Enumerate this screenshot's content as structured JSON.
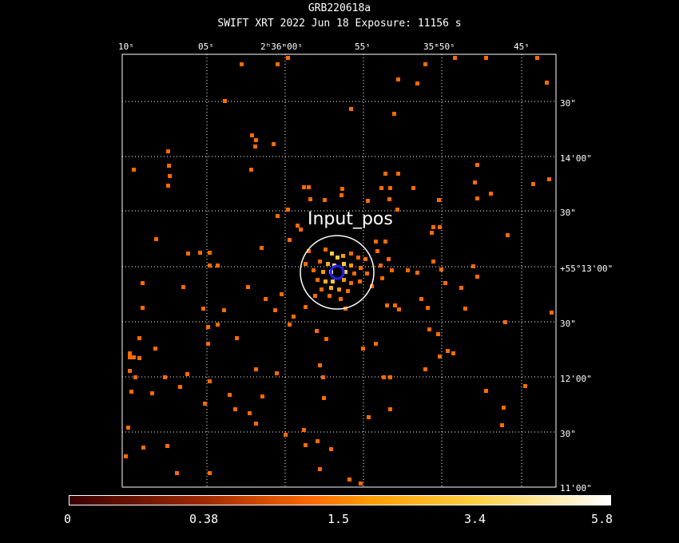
{
  "header": {
    "title": "GRB220618a",
    "subtitle": "SWIFT XRT   2022 Jun 18    Exposure: 11156 s"
  },
  "axes": {
    "ra_ticks": [
      "10ˢ",
      "05ˢ",
      "2ʰ36ᵐ00ˢ",
      "55ˢ",
      "35ᵐ50ˢ",
      "45ˢ"
    ],
    "dec_ticks": [
      "30\"",
      "14'00\"",
      "30\"",
      "+55°13'00\"",
      "30\"",
      "12'00\"",
      "30\"",
      "11'00\""
    ],
    "grid": true
  },
  "source_label": "Input_pos",
  "colorbar": {
    "labels": [
      "0",
      "0.38",
      "1.5",
      "3.4",
      "5.8"
    ],
    "min": 0,
    "max": 5.8,
    "colors": [
      "#ffffff",
      "#ff8000",
      "#400000"
    ]
  }
}
